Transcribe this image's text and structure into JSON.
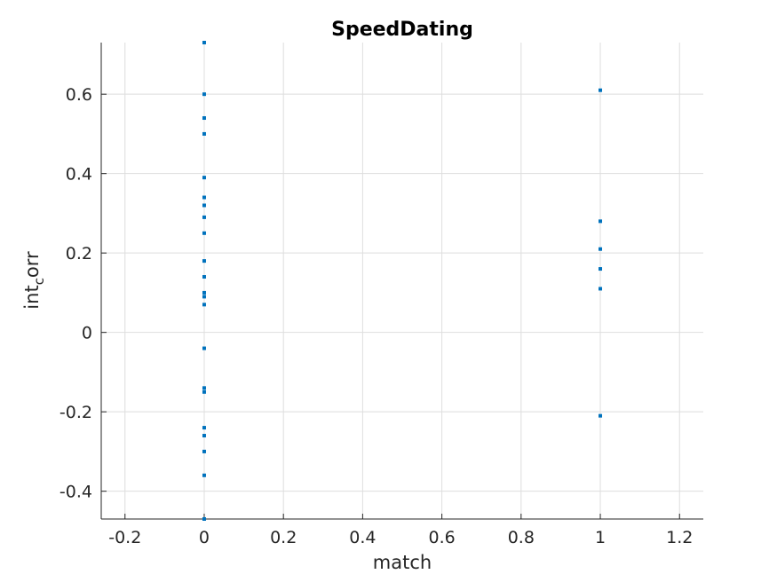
{
  "chart_data": {
    "type": "scatter",
    "title": "SpeedDating",
    "xlabel": "match",
    "ylabel": {
      "main": "int",
      "subscript": "c",
      "rest": "orr"
    },
    "xlim": [
      -0.26,
      1.26
    ],
    "ylim": [
      -0.47,
      0.73
    ],
    "x_ticks": [
      -0.2,
      0,
      0.2,
      0.4,
      0.6,
      0.8,
      1,
      1.2
    ],
    "x_tick_labels": [
      "-0.2",
      "0",
      "0.2",
      "0.4",
      "0.6",
      "0.8",
      "1",
      "1.2"
    ],
    "y_ticks": [
      -0.4,
      -0.2,
      0,
      0.2,
      0.4,
      0.6
    ],
    "y_tick_labels": [
      "-0.4",
      "-0.2",
      "0",
      "0.2",
      "0.4",
      "0.6"
    ],
    "grid": true,
    "marker_color": "#0072bd",
    "points": [
      {
        "x": 0,
        "y": 0.73
      },
      {
        "x": 0,
        "y": 0.6
      },
      {
        "x": 0,
        "y": 0.54
      },
      {
        "x": 0,
        "y": 0.5
      },
      {
        "x": 0,
        "y": 0.39
      },
      {
        "x": 0,
        "y": 0.34
      },
      {
        "x": 0,
        "y": 0.32
      },
      {
        "x": 0,
        "y": 0.29
      },
      {
        "x": 0,
        "y": 0.25
      },
      {
        "x": 0,
        "y": 0.18
      },
      {
        "x": 0,
        "y": 0.14
      },
      {
        "x": 0,
        "y": 0.1
      },
      {
        "x": 0,
        "y": 0.09
      },
      {
        "x": 0,
        "y": 0.07
      },
      {
        "x": 0,
        "y": -0.04
      },
      {
        "x": 0,
        "y": -0.14
      },
      {
        "x": 0,
        "y": -0.15
      },
      {
        "x": 0,
        "y": -0.24
      },
      {
        "x": 0,
        "y": -0.26
      },
      {
        "x": 0,
        "y": -0.3
      },
      {
        "x": 0,
        "y": -0.36
      },
      {
        "x": 0,
        "y": -0.47
      },
      {
        "x": 1,
        "y": 0.61
      },
      {
        "x": 1,
        "y": 0.28
      },
      {
        "x": 1,
        "y": 0.21
      },
      {
        "x": 1,
        "y": 0.16
      },
      {
        "x": 1,
        "y": 0.11
      },
      {
        "x": 1,
        "y": -0.21
      }
    ]
  }
}
